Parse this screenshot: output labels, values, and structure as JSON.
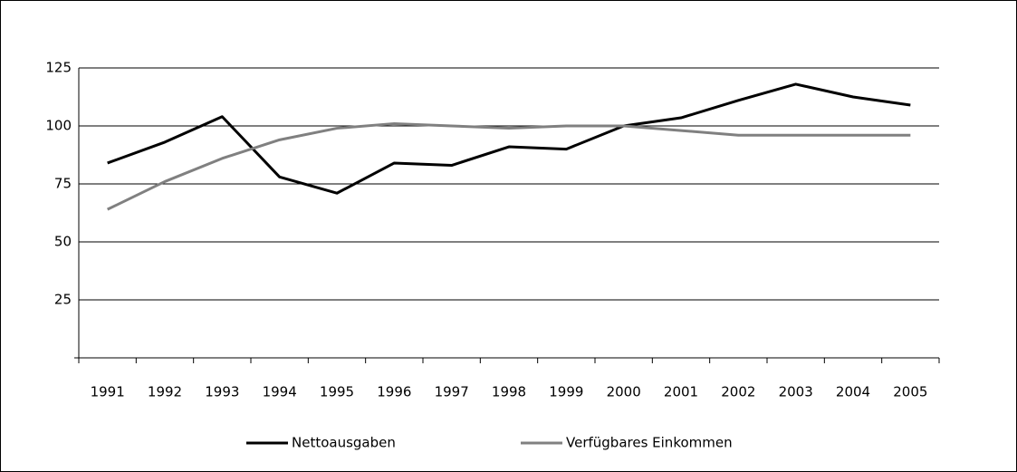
{
  "chart_data": {
    "type": "line",
    "categories": [
      "1991",
      "1992",
      "1993",
      "1994",
      "1995",
      "1996",
      "1997",
      "1998",
      "1999",
      "2000",
      "2001",
      "2002",
      "2003",
      "2004",
      "2005"
    ],
    "series": [
      {
        "name": "Nettoausgaben",
        "color": "#000000",
        "values": [
          84,
          93,
          104,
          78,
          71,
          84,
          83,
          91,
          90,
          100,
          103.5,
          111,
          118,
          112.5,
          109
        ]
      },
      {
        "name": "Verfügbares Einkommen",
        "color": "#808080",
        "values": [
          64,
          76,
          86,
          94,
          99,
          101,
          100,
          99,
          100,
          100,
          98,
          96,
          96,
          96,
          96
        ]
      }
    ],
    "ylim": [
      0,
      125
    ],
    "yticks": [
      25,
      50,
      75,
      100,
      125
    ],
    "grid": true,
    "legend": "bottom"
  }
}
